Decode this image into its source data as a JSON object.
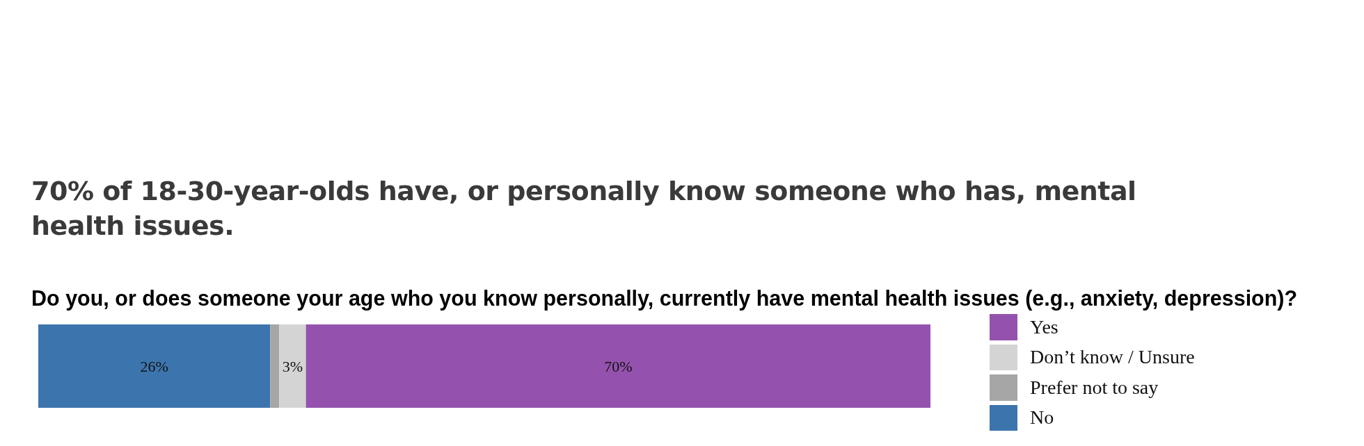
{
  "chart_data": {
    "type": "bar",
    "orientation": "horizontal",
    "stacked": true,
    "title": "70% of 18-30-year-olds have, or personally know someone who has, mental health issues.",
    "subtitle": "Do you, or does someone your age who you know personally, currently have mental health issues (e.g., anxiety, depression)?",
    "categories": [
      null
    ],
    "series": [
      {
        "name": "No",
        "color": "#3c75ad",
        "values": [
          26
        ],
        "value_labels": [
          "26%"
        ]
      },
      {
        "name": "Prefer not to say",
        "color": "#a6a6a6",
        "values": [
          1
        ],
        "value_labels": [
          null
        ]
      },
      {
        "name": "Don’t know / Unsure",
        "color": "#d4d4d4",
        "values": [
          3
        ],
        "value_labels": [
          "3%"
        ]
      },
      {
        "name": "Yes",
        "color": "#9452ae",
        "values": [
          70
        ],
        "value_labels": [
          "70%"
        ]
      }
    ],
    "legend": "right",
    "tick_labels": false
  }
}
